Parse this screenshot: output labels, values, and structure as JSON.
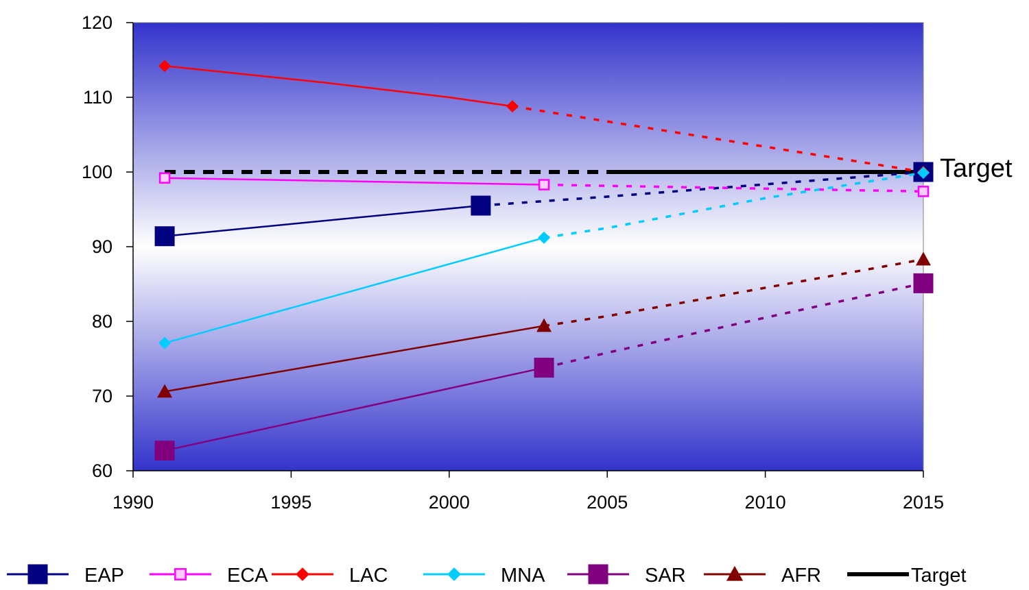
{
  "chart_data": {
    "type": "line",
    "title": "",
    "xlabel": "",
    "ylabel": "",
    "xlim": [
      1990,
      2015
    ],
    "ylim": [
      60,
      120
    ],
    "x_ticks": [
      1990,
      1995,
      2000,
      2005,
      2010,
      2015
    ],
    "y_ticks": [
      60,
      70,
      80,
      90,
      100,
      110,
      120
    ],
    "grid": false,
    "legend_position": "bottom",
    "background": "vertical gradient, blue edges to white center",
    "series": [
      {
        "name": "EAP",
        "color": "#000080",
        "marker": "square-large",
        "actual": [
          [
            1991,
            91.4
          ],
          [
            2001,
            95.5
          ]
        ],
        "projected": [
          [
            2001,
            95.5
          ],
          [
            2005,
            96.7
          ],
          [
            2015,
            100.0
          ]
        ]
      },
      {
        "name": "ECA",
        "color": "#ff00ff",
        "marker": "square-open",
        "actual": [
          [
            1991,
            99.2
          ],
          [
            2003,
            98.3
          ]
        ],
        "projected": [
          [
            2003,
            98.3
          ],
          [
            2015,
            97.4
          ]
        ]
      },
      {
        "name": "LAC",
        "color": "#ff0000",
        "marker": "diamond",
        "actual": [
          [
            1991,
            114.2
          ],
          [
            1996,
            112.0
          ],
          [
            2000,
            110.0
          ],
          [
            2002,
            108.8
          ]
        ],
        "projected": [
          [
            2002,
            108.8
          ],
          [
            2015,
            100.0
          ]
        ]
      },
      {
        "name": "MNA",
        "color": "#00ccff",
        "marker": "diamond",
        "actual": [
          [
            1991,
            77.1
          ],
          [
            2003,
            91.2
          ]
        ],
        "projected": [
          [
            2003,
            91.2
          ],
          [
            2005,
            92.5
          ],
          [
            2010,
            96.5
          ],
          [
            2015,
            99.9
          ]
        ]
      },
      {
        "name": "SAR",
        "color": "#800080",
        "marker": "square-large",
        "actual": [
          [
            1991,
            62.7
          ],
          [
            2003,
            73.8
          ]
        ],
        "projected": [
          [
            2003,
            73.8
          ],
          [
            2005,
            75.8
          ],
          [
            2010,
            80.5
          ],
          [
            2015,
            85.1
          ]
        ]
      },
      {
        "name": "AFR",
        "color": "#800000",
        "marker": "triangle",
        "actual": [
          [
            1991,
            70.6
          ],
          [
            2003,
            79.4
          ]
        ],
        "projected": [
          [
            2003,
            79.4
          ],
          [
            2005,
            80.7
          ],
          [
            2010,
            84.5
          ],
          [
            2015,
            88.3
          ]
        ]
      },
      {
        "name": "Target",
        "color": "#000000",
        "marker": "none",
        "actual": [
          [
            2005,
            100
          ],
          [
            2015,
            100
          ]
        ],
        "projected": [
          [
            1991,
            100
          ],
          [
            2005,
            100
          ]
        ]
      }
    ],
    "annotations": [
      {
        "text": "Target",
        "x": 2015,
        "y": 100
      }
    ]
  }
}
